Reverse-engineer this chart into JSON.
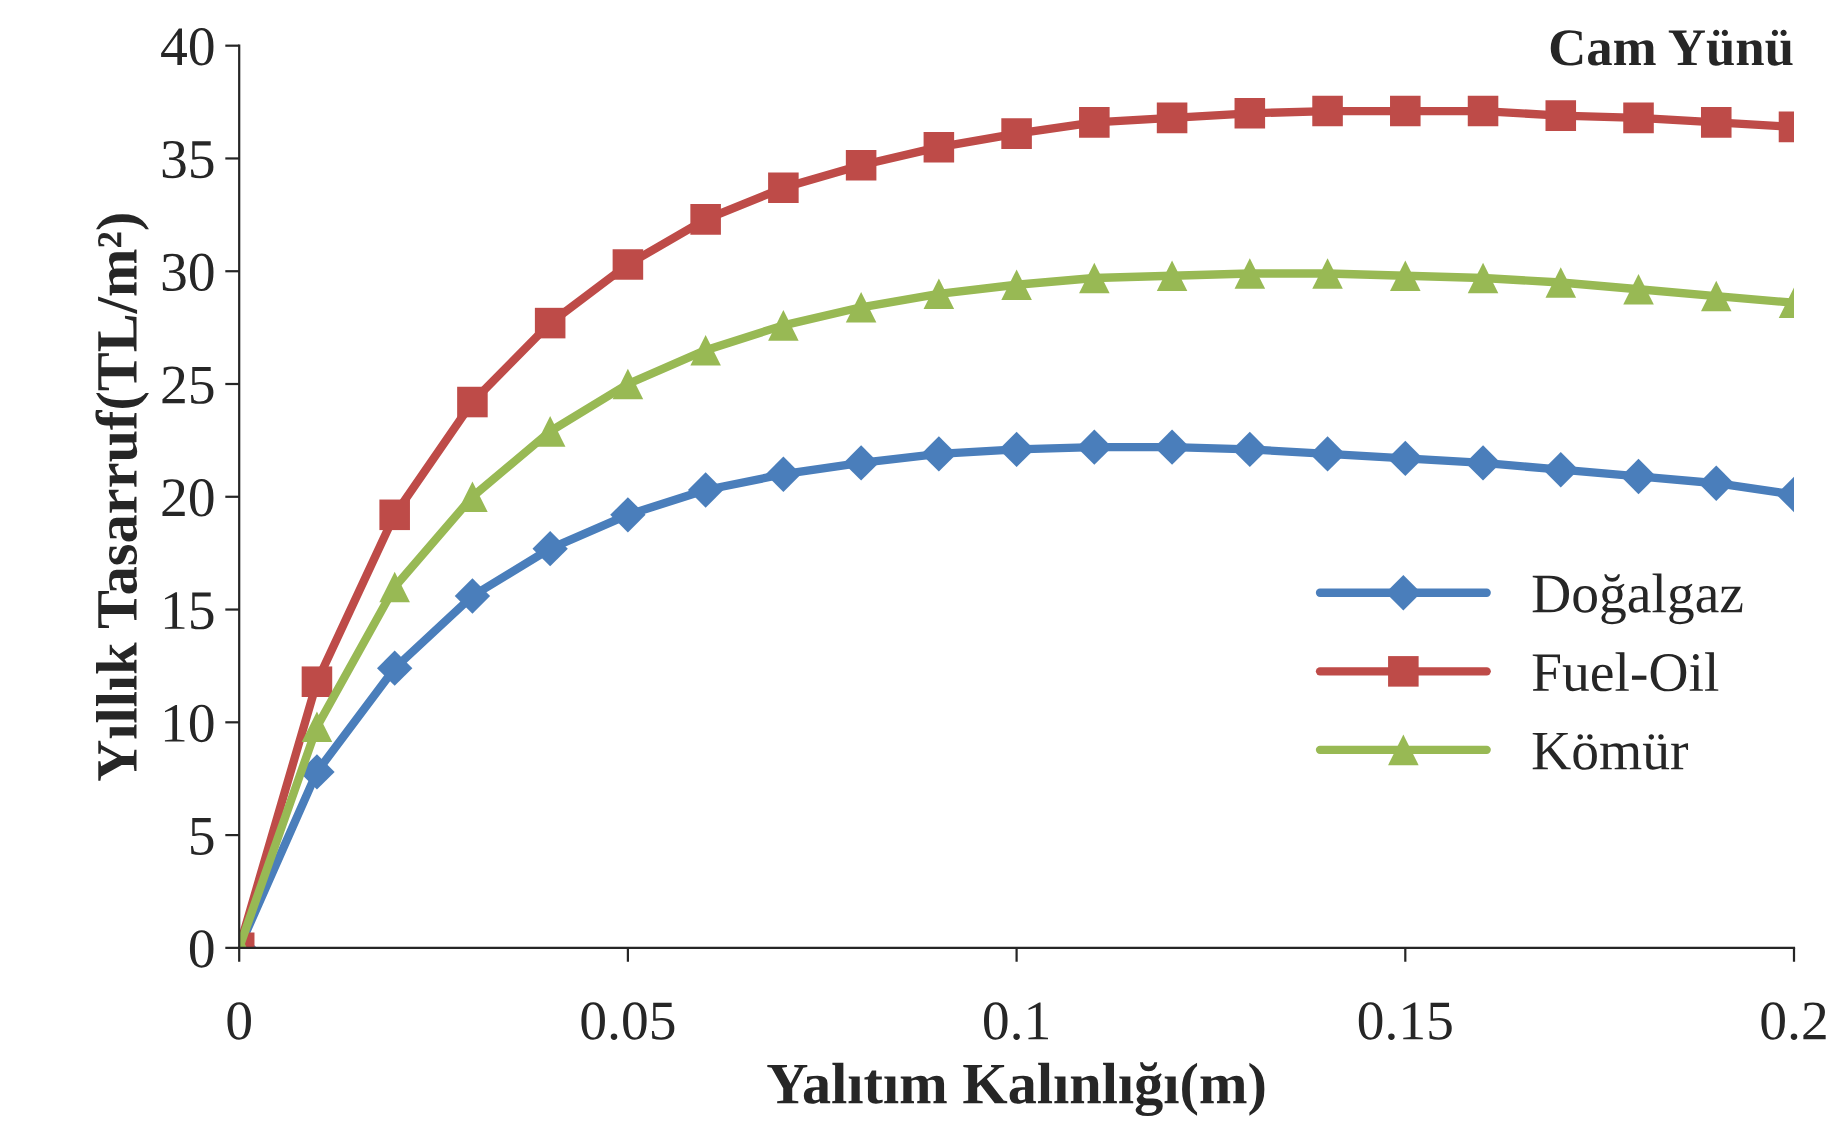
{
  "chart_data": {
    "type": "line",
    "title": "Cam Yünü",
    "xlabel": "Yalıtım Kalınlığı(m)",
    "ylabel": "Yıllık Tasarruf(TL/m²)",
    "x": [
      0,
      0.01,
      0.02,
      0.03,
      0.04,
      0.05,
      0.06,
      0.07,
      0.08,
      0.09,
      0.1,
      0.11,
      0.12,
      0.13,
      0.14,
      0.15,
      0.16,
      0.17,
      0.18,
      0.19,
      0.2
    ],
    "series": [
      {
        "name": "Doğalgaz",
        "color": "#4a7ebb",
        "marker": "diamond",
        "values": [
          0,
          7.8,
          12.4,
          15.6,
          17.7,
          19.2,
          20.3,
          21.0,
          21.5,
          21.9,
          22.1,
          22.2,
          22.2,
          22.1,
          21.9,
          21.7,
          21.5,
          21.2,
          20.9,
          20.6,
          20.1
        ]
      },
      {
        "name": "Fuel-Oil",
        "color": "#be4b48",
        "marker": "square",
        "values": [
          0,
          11.8,
          19.2,
          24.2,
          27.7,
          30.3,
          32.3,
          33.7,
          34.7,
          35.5,
          36.1,
          36.6,
          36.8,
          37.0,
          37.1,
          37.1,
          37.1,
          36.9,
          36.8,
          36.6,
          36.4
        ]
      },
      {
        "name": "Kömür",
        "color": "#98b954",
        "marker": "triangle",
        "values": [
          0,
          9.8,
          16.0,
          20.0,
          22.9,
          25.0,
          26.5,
          27.6,
          28.4,
          29.0,
          29.4,
          29.7,
          29.8,
          29.9,
          29.9,
          29.8,
          29.7,
          29.5,
          29.2,
          28.9,
          28.6
        ]
      }
    ],
    "xlim": [
      0,
      0.2
    ],
    "ylim": [
      0,
      40
    ],
    "xticks": [
      0,
      0.05,
      0.1,
      0.15,
      0.2
    ],
    "yticks": [
      0,
      5,
      10,
      15,
      20,
      25,
      30,
      35,
      40
    ],
    "grid": false,
    "legend": "right",
    "line_style": "solid"
  }
}
